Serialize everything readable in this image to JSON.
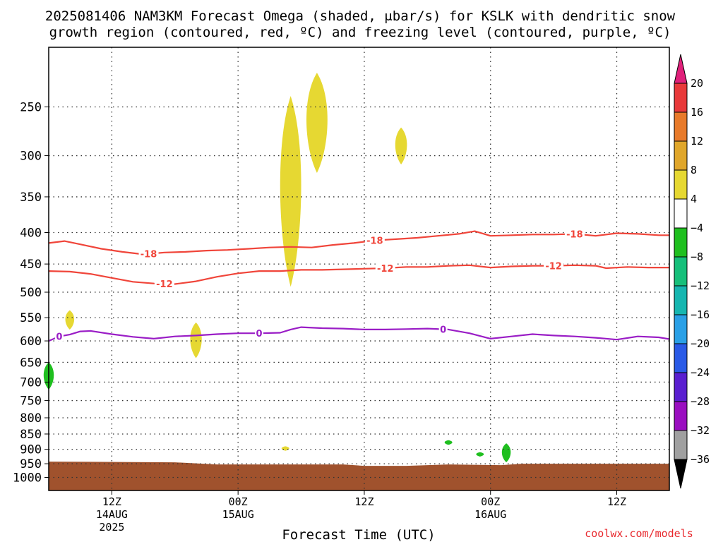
{
  "title_line1": "2025081406 NAM3KM Forecast Omega (shaded, μbar/s) for KSLK with dendritic snow",
  "title_line2": "growth region (contoured, red, ºC) and freezing level (contoured, purple, ºC)",
  "credit": "coolwx.com/models",
  "chart_data": {
    "type": "contour",
    "title": "2025081406 NAM3KM Forecast Omega (shaded, μbar/s) for KSLK with dendritic snow growth region (contoured, red, ºC) and freezing level (contoured, purple, ºC)",
    "xlabel": "Forecast Time (UTC)",
    "ylabel": "",
    "x_range_hours": [
      0,
      59
    ],
    "y_scale": "log-pressure (hPa), inverted",
    "ylim": [
      1050,
      200
    ],
    "y_ticks": [
      250,
      300,
      350,
      400,
      450,
      500,
      550,
      600,
      650,
      700,
      750,
      800,
      850,
      900,
      950,
      1000
    ],
    "x_ticks": [
      {
        "hour": 6,
        "label": "12Z",
        "sub": "14AUG",
        "sub2": "2025"
      },
      {
        "hour": 18,
        "label": "00Z",
        "sub": "15AUG",
        "sub2": ""
      },
      {
        "hour": 30,
        "label": "12Z",
        "sub": "",
        "sub2": ""
      },
      {
        "hour": 42,
        "label": "00Z",
        "sub": "16AUG",
        "sub2": ""
      },
      {
        "hour": 54,
        "label": "12Z",
        "sub": "",
        "sub2": ""
      }
    ],
    "grid": true,
    "colorbar": {
      "labels": [
        "20",
        "16",
        "12",
        "8",
        "4",
        "−4",
        "−8",
        "−12",
        "−16",
        "−20",
        "−24",
        "−28",
        "−32",
        "−36"
      ],
      "colors_top_to_bottom": [
        "#e0207a",
        "#e8393a",
        "#e87a2a",
        "#e0a62a",
        "#e6d832",
        "#ffffff",
        "#1fbf1f",
        "#16bf7a",
        "#16b6b0",
        "#2aa0e6",
        "#2a5ae6",
        "#5a1fd0",
        "#9a0fc0",
        "#a0a0a0",
        "#000000"
      ]
    },
    "contours": [
      {
        "label": "-18",
        "color": "#f0453a",
        "points": [
          [
            0,
            416
          ],
          [
            1.5,
            413
          ],
          [
            3,
            418
          ],
          [
            5,
            425
          ],
          [
            7,
            430
          ],
          [
            9,
            434
          ],
          [
            11,
            431
          ],
          [
            13,
            430
          ],
          [
            15,
            428
          ],
          [
            17,
            427
          ],
          [
            19,
            425
          ],
          [
            21,
            423
          ],
          [
            23,
            422
          ],
          [
            25,
            423
          ],
          [
            27,
            419
          ],
          [
            29,
            416
          ],
          [
            31,
            412
          ],
          [
            33,
            410
          ],
          [
            35,
            408
          ],
          [
            37,
            405
          ],
          [
            39,
            402
          ],
          [
            40.5,
            398
          ],
          [
            42,
            405
          ],
          [
            44,
            404
          ],
          [
            46,
            403
          ],
          [
            48,
            403
          ],
          [
            50,
            402
          ],
          [
            52,
            405
          ],
          [
            54,
            401
          ],
          [
            56,
            402
          ],
          [
            58,
            404
          ],
          [
            59,
            404
          ]
        ],
        "label_hours": [
          9.5,
          31,
          50
        ]
      },
      {
        "label": "-12",
        "color": "#f0453a",
        "points": [
          [
            0,
            462
          ],
          [
            2,
            463
          ],
          [
            4,
            467
          ],
          [
            6,
            474
          ],
          [
            8,
            481
          ],
          [
            10,
            484
          ],
          [
            12,
            485
          ],
          [
            14,
            480
          ],
          [
            16,
            472
          ],
          [
            18,
            466
          ],
          [
            20,
            462
          ],
          [
            22,
            462
          ],
          [
            24,
            460
          ],
          [
            26,
            460
          ],
          [
            28,
            459
          ],
          [
            30,
            458
          ],
          [
            32,
            457
          ],
          [
            34,
            455
          ],
          [
            36,
            455
          ],
          [
            38,
            453
          ],
          [
            40,
            452
          ],
          [
            42,
            456
          ],
          [
            44,
            454
          ],
          [
            46,
            453
          ],
          [
            48,
            453
          ],
          [
            50,
            452
          ],
          [
            52,
            453
          ],
          [
            53,
            457
          ],
          [
            55,
            455
          ],
          [
            57,
            456
          ],
          [
            59,
            456
          ]
        ],
        "label_hours": [
          11,
          32,
          48
        ]
      },
      {
        "label": "0",
        "color": "#9a1dc6",
        "points": [
          [
            0,
            600
          ],
          [
            1,
            590
          ],
          [
            2,
            586
          ],
          [
            3,
            579
          ],
          [
            4,
            578
          ],
          [
            6,
            585
          ],
          [
            8,
            591
          ],
          [
            10,
            595
          ],
          [
            12,
            590
          ],
          [
            14,
            588
          ],
          [
            16,
            585
          ],
          [
            18,
            583
          ],
          [
            20,
            583
          ],
          [
            22,
            582
          ],
          [
            23,
            575
          ],
          [
            24,
            570
          ],
          [
            26,
            572
          ],
          [
            28,
            573
          ],
          [
            30,
            575
          ],
          [
            32,
            575
          ],
          [
            34,
            574
          ],
          [
            36,
            573
          ],
          [
            38,
            575
          ],
          [
            40,
            583
          ],
          [
            42,
            595
          ],
          [
            44,
            590
          ],
          [
            46,
            585
          ],
          [
            48,
            588
          ],
          [
            50,
            590
          ],
          [
            52,
            593
          ],
          [
            54,
            597
          ],
          [
            56,
            590
          ],
          [
            58,
            592
          ],
          [
            59,
            596
          ]
        ],
        "label_hours": [
          1,
          20,
          37.5
        ]
      }
    ],
    "omega_regions": [
      {
        "color": "#e6d832",
        "value_range": "4 to 8",
        "hour": 23,
        "p_top": 240,
        "p_bot": 490
      },
      {
        "color": "#e6d832",
        "value_range": "4 to 8",
        "hour": 25.5,
        "p_top": 220,
        "p_bot": 320
      },
      {
        "color": "#e6d832",
        "value_range": "4 to 8",
        "hour": 33.5,
        "p_top": 270,
        "p_bot": 310
      },
      {
        "color": "#e6d832",
        "value_range": "4 to 8",
        "hour": 2,
        "p_top": 535,
        "p_bot": 575
      },
      {
        "color": "#e6d832",
        "value_range": "4 to 8",
        "hour": 14,
        "p_top": 560,
        "p_bot": 640
      },
      {
        "color": "#e6d832",
        "value_range": "4 to 8",
        "hour": 22.5,
        "p_top": 890,
        "p_bot": 905
      },
      {
        "color": "#1fbf1f",
        "value_range": "-8 to -4",
        "hour": 0,
        "p_top": 650,
        "p_bot": 720
      },
      {
        "color": "#1fbf1f",
        "value_range": "-8 to -4",
        "hour": 38,
        "p_top": 870,
        "p_bot": 885
      },
      {
        "color": "#1fbf1f",
        "value_range": "-8 to -4",
        "hour": 41,
        "p_top": 910,
        "p_bot": 925
      },
      {
        "color": "#1fbf1f",
        "value_range": "-8 to -4",
        "hour": 43.5,
        "p_top": 880,
        "p_bot": 945
      }
    ],
    "terrain": {
      "color": "#a0522d",
      "surface_pressure_hPa": 950
    }
  }
}
